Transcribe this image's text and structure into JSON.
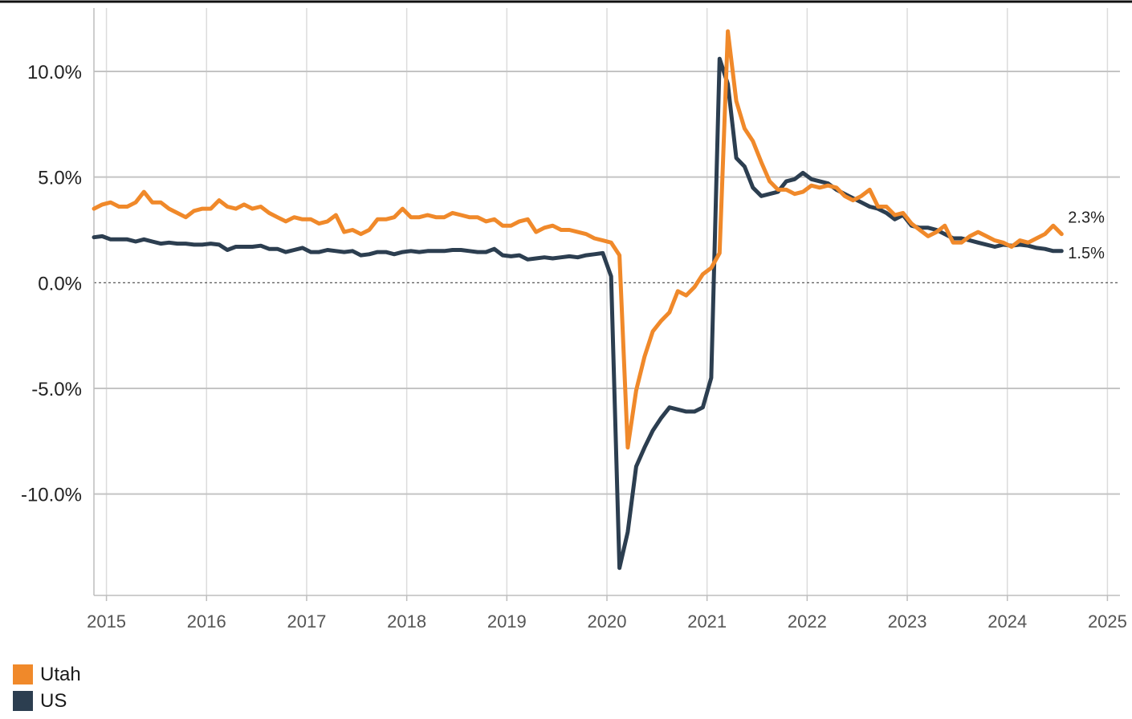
{
  "chart_data": {
    "type": "line",
    "xlim": [
      2014.875,
      2025.125
    ],
    "ylim": [
      -14.8,
      13.0
    ],
    "y_ticks": [
      10,
      5,
      0,
      -5,
      -10
    ],
    "y_tick_labels": [
      "10.0%",
      "5.0%",
      "0.0%",
      "-5.0%",
      "-10.0%"
    ],
    "x_ticks": [
      2015,
      2016,
      2017,
      2018,
      2019,
      2020,
      2021,
      2022,
      2023,
      2024,
      2025
    ],
    "x_tick_labels": [
      "2015",
      "2016",
      "2017",
      "2018",
      "2019",
      "2020",
      "2021",
      "2022",
      "2023",
      "2024",
      "2025"
    ],
    "grid": true,
    "zero_line": "dotted",
    "legend_position": "bottom-left",
    "series": [
      {
        "name": "Utah",
        "color": "#F0892A",
        "end_label": "2.3%",
        "points": [
          [
            2014.875,
            3.5
          ],
          [
            2014.958,
            3.7
          ],
          [
            2015.042,
            3.8
          ],
          [
            2015.125,
            3.6
          ],
          [
            2015.208,
            3.6
          ],
          [
            2015.292,
            3.8
          ],
          [
            2015.375,
            4.3
          ],
          [
            2015.458,
            3.8
          ],
          [
            2015.542,
            3.8
          ],
          [
            2015.625,
            3.5
          ],
          [
            2015.708,
            3.3
          ],
          [
            2015.792,
            3.1
          ],
          [
            2015.875,
            3.4
          ],
          [
            2015.958,
            3.5
          ],
          [
            2016.042,
            3.5
          ],
          [
            2016.125,
            3.9
          ],
          [
            2016.208,
            3.6
          ],
          [
            2016.292,
            3.5
          ],
          [
            2016.375,
            3.7
          ],
          [
            2016.458,
            3.5
          ],
          [
            2016.542,
            3.6
          ],
          [
            2016.625,
            3.3
          ],
          [
            2016.708,
            3.1
          ],
          [
            2016.792,
            2.9
          ],
          [
            2016.875,
            3.1
          ],
          [
            2016.958,
            3.0
          ],
          [
            2017.042,
            3.0
          ],
          [
            2017.125,
            2.8
          ],
          [
            2017.208,
            2.9
          ],
          [
            2017.292,
            3.2
          ],
          [
            2017.375,
            2.4
          ],
          [
            2017.458,
            2.5
          ],
          [
            2017.542,
            2.3
          ],
          [
            2017.625,
            2.5
          ],
          [
            2017.708,
            3.0
          ],
          [
            2017.792,
            3.0
          ],
          [
            2017.875,
            3.1
          ],
          [
            2017.958,
            3.5
          ],
          [
            2018.042,
            3.1
          ],
          [
            2018.125,
            3.1
          ],
          [
            2018.208,
            3.2
          ],
          [
            2018.292,
            3.1
          ],
          [
            2018.375,
            3.1
          ],
          [
            2018.458,
            3.3
          ],
          [
            2018.542,
            3.2
          ],
          [
            2018.625,
            3.1
          ],
          [
            2018.708,
            3.1
          ],
          [
            2018.792,
            2.9
          ],
          [
            2018.875,
            3.0
          ],
          [
            2018.958,
            2.7
          ],
          [
            2019.042,
            2.7
          ],
          [
            2019.125,
            2.9
          ],
          [
            2019.208,
            3.0
          ],
          [
            2019.292,
            2.4
          ],
          [
            2019.375,
            2.6
          ],
          [
            2019.458,
            2.7
          ],
          [
            2019.542,
            2.5
          ],
          [
            2019.625,
            2.5
          ],
          [
            2019.708,
            2.4
          ],
          [
            2019.792,
            2.3
          ],
          [
            2019.875,
            2.1
          ],
          [
            2019.958,
            2.0
          ],
          [
            2020.042,
            1.9
          ],
          [
            2020.125,
            1.3
          ],
          [
            2020.208,
            -7.8
          ],
          [
            2020.292,
            -5.1
          ],
          [
            2020.375,
            -3.5
          ],
          [
            2020.458,
            -2.3
          ],
          [
            2020.542,
            -1.8
          ],
          [
            2020.625,
            -1.4
          ],
          [
            2020.708,
            -0.4
          ],
          [
            2020.792,
            -0.6
          ],
          [
            2020.875,
            -0.2
          ],
          [
            2020.958,
            0.4
          ],
          [
            2021.042,
            0.7
          ],
          [
            2021.125,
            1.4
          ],
          [
            2021.208,
            11.9
          ],
          [
            2021.292,
            8.6
          ],
          [
            2021.375,
            7.3
          ],
          [
            2021.458,
            6.7
          ],
          [
            2021.542,
            5.7
          ],
          [
            2021.625,
            4.8
          ],
          [
            2021.708,
            4.4
          ],
          [
            2021.792,
            4.4
          ],
          [
            2021.875,
            4.2
          ],
          [
            2021.958,
            4.3
          ],
          [
            2022.042,
            4.6
          ],
          [
            2022.125,
            4.5
          ],
          [
            2022.208,
            4.6
          ],
          [
            2022.292,
            4.5
          ],
          [
            2022.375,
            4.1
          ],
          [
            2022.458,
            3.9
          ],
          [
            2022.542,
            4.1
          ],
          [
            2022.625,
            4.4
          ],
          [
            2022.708,
            3.6
          ],
          [
            2022.792,
            3.6
          ],
          [
            2022.875,
            3.2
          ],
          [
            2022.958,
            3.3
          ],
          [
            2023.042,
            2.8
          ],
          [
            2023.125,
            2.5
          ],
          [
            2023.208,
            2.2
          ],
          [
            2023.292,
            2.4
          ],
          [
            2023.375,
            2.7
          ],
          [
            2023.458,
            1.9
          ],
          [
            2023.542,
            1.9
          ],
          [
            2023.625,
            2.2
          ],
          [
            2023.708,
            2.4
          ],
          [
            2023.792,
            2.2
          ],
          [
            2023.875,
            2.0
          ],
          [
            2023.958,
            1.9
          ],
          [
            2024.042,
            1.7
          ],
          [
            2024.125,
            2.0
          ],
          [
            2024.208,
            1.9
          ],
          [
            2024.292,
            2.1
          ],
          [
            2024.375,
            2.3
          ],
          [
            2024.458,
            2.7
          ],
          [
            2024.542,
            2.3
          ]
        ]
      },
      {
        "name": "US",
        "color": "#2C3E50",
        "end_label": "1.5%",
        "points": [
          [
            2014.875,
            2.15
          ],
          [
            2014.958,
            2.2
          ],
          [
            2015.042,
            2.05
          ],
          [
            2015.125,
            2.05
          ],
          [
            2015.208,
            2.05
          ],
          [
            2015.292,
            1.95
          ],
          [
            2015.375,
            2.05
          ],
          [
            2015.458,
            1.95
          ],
          [
            2015.542,
            1.85
          ],
          [
            2015.625,
            1.9
          ],
          [
            2015.708,
            1.85
          ],
          [
            2015.792,
            1.85
          ],
          [
            2015.875,
            1.8
          ],
          [
            2015.958,
            1.8
          ],
          [
            2016.042,
            1.85
          ],
          [
            2016.125,
            1.8
          ],
          [
            2016.208,
            1.55
          ],
          [
            2016.292,
            1.7
          ],
          [
            2016.375,
            1.7
          ],
          [
            2016.458,
            1.7
          ],
          [
            2016.542,
            1.75
          ],
          [
            2016.625,
            1.6
          ],
          [
            2016.708,
            1.6
          ],
          [
            2016.792,
            1.45
          ],
          [
            2016.875,
            1.55
          ],
          [
            2016.958,
            1.65
          ],
          [
            2017.042,
            1.45
          ],
          [
            2017.125,
            1.45
          ],
          [
            2017.208,
            1.55
          ],
          [
            2017.292,
            1.5
          ],
          [
            2017.375,
            1.45
          ],
          [
            2017.458,
            1.5
          ],
          [
            2017.542,
            1.3
          ],
          [
            2017.625,
            1.35
          ],
          [
            2017.708,
            1.45
          ],
          [
            2017.792,
            1.45
          ],
          [
            2017.875,
            1.35
          ],
          [
            2017.958,
            1.45
          ],
          [
            2018.042,
            1.5
          ],
          [
            2018.125,
            1.45
          ],
          [
            2018.208,
            1.5
          ],
          [
            2018.292,
            1.5
          ],
          [
            2018.375,
            1.5
          ],
          [
            2018.458,
            1.55
          ],
          [
            2018.542,
            1.55
          ],
          [
            2018.625,
            1.5
          ],
          [
            2018.708,
            1.45
          ],
          [
            2018.792,
            1.45
          ],
          [
            2018.875,
            1.6
          ],
          [
            2018.958,
            1.3
          ],
          [
            2019.042,
            1.25
          ],
          [
            2019.125,
            1.3
          ],
          [
            2019.208,
            1.1
          ],
          [
            2019.292,
            1.15
          ],
          [
            2019.375,
            1.2
          ],
          [
            2019.458,
            1.15
          ],
          [
            2019.542,
            1.2
          ],
          [
            2019.625,
            1.25
          ],
          [
            2019.708,
            1.2
          ],
          [
            2019.792,
            1.3
          ],
          [
            2019.875,
            1.35
          ],
          [
            2019.958,
            1.4
          ],
          [
            2020.042,
            0.3
          ],
          [
            2020.125,
            -13.5
          ],
          [
            2020.208,
            -11.8
          ],
          [
            2020.292,
            -8.7
          ],
          [
            2020.375,
            -7.8
          ],
          [
            2020.458,
            -7.0
          ],
          [
            2020.542,
            -6.4
          ],
          [
            2020.625,
            -5.9
          ],
          [
            2020.708,
            -6.0
          ],
          [
            2020.792,
            -6.1
          ],
          [
            2020.875,
            -6.1
          ],
          [
            2020.958,
            -5.9
          ],
          [
            2021.042,
            -4.5
          ],
          [
            2021.125,
            10.6
          ],
          [
            2021.208,
            9.4
          ],
          [
            2021.292,
            5.9
          ],
          [
            2021.375,
            5.5
          ],
          [
            2021.458,
            4.5
          ],
          [
            2021.542,
            4.1
          ],
          [
            2021.625,
            4.2
          ],
          [
            2021.708,
            4.3
          ],
          [
            2021.792,
            4.8
          ],
          [
            2021.875,
            4.9
          ],
          [
            2021.958,
            5.2
          ],
          [
            2022.042,
            4.9
          ],
          [
            2022.125,
            4.8
          ],
          [
            2022.208,
            4.7
          ],
          [
            2022.292,
            4.4
          ],
          [
            2022.375,
            4.2
          ],
          [
            2022.458,
            4.0
          ],
          [
            2022.542,
            3.8
          ],
          [
            2022.625,
            3.6
          ],
          [
            2022.708,
            3.5
          ],
          [
            2022.792,
            3.3
          ],
          [
            2022.875,
            3.0
          ],
          [
            2022.958,
            3.2
          ],
          [
            2023.042,
            2.7
          ],
          [
            2023.125,
            2.6
          ],
          [
            2023.208,
            2.6
          ],
          [
            2023.292,
            2.5
          ],
          [
            2023.375,
            2.3
          ],
          [
            2023.458,
            2.1
          ],
          [
            2023.542,
            2.1
          ],
          [
            2023.625,
            2.0
          ],
          [
            2023.708,
            1.9
          ],
          [
            2023.792,
            1.8
          ],
          [
            2023.875,
            1.7
          ],
          [
            2023.958,
            1.8
          ],
          [
            2024.042,
            1.75
          ],
          [
            2024.125,
            1.8
          ],
          [
            2024.208,
            1.75
          ],
          [
            2024.292,
            1.65
          ],
          [
            2024.375,
            1.6
          ],
          [
            2024.458,
            1.5
          ],
          [
            2024.542,
            1.5
          ]
        ]
      }
    ]
  }
}
